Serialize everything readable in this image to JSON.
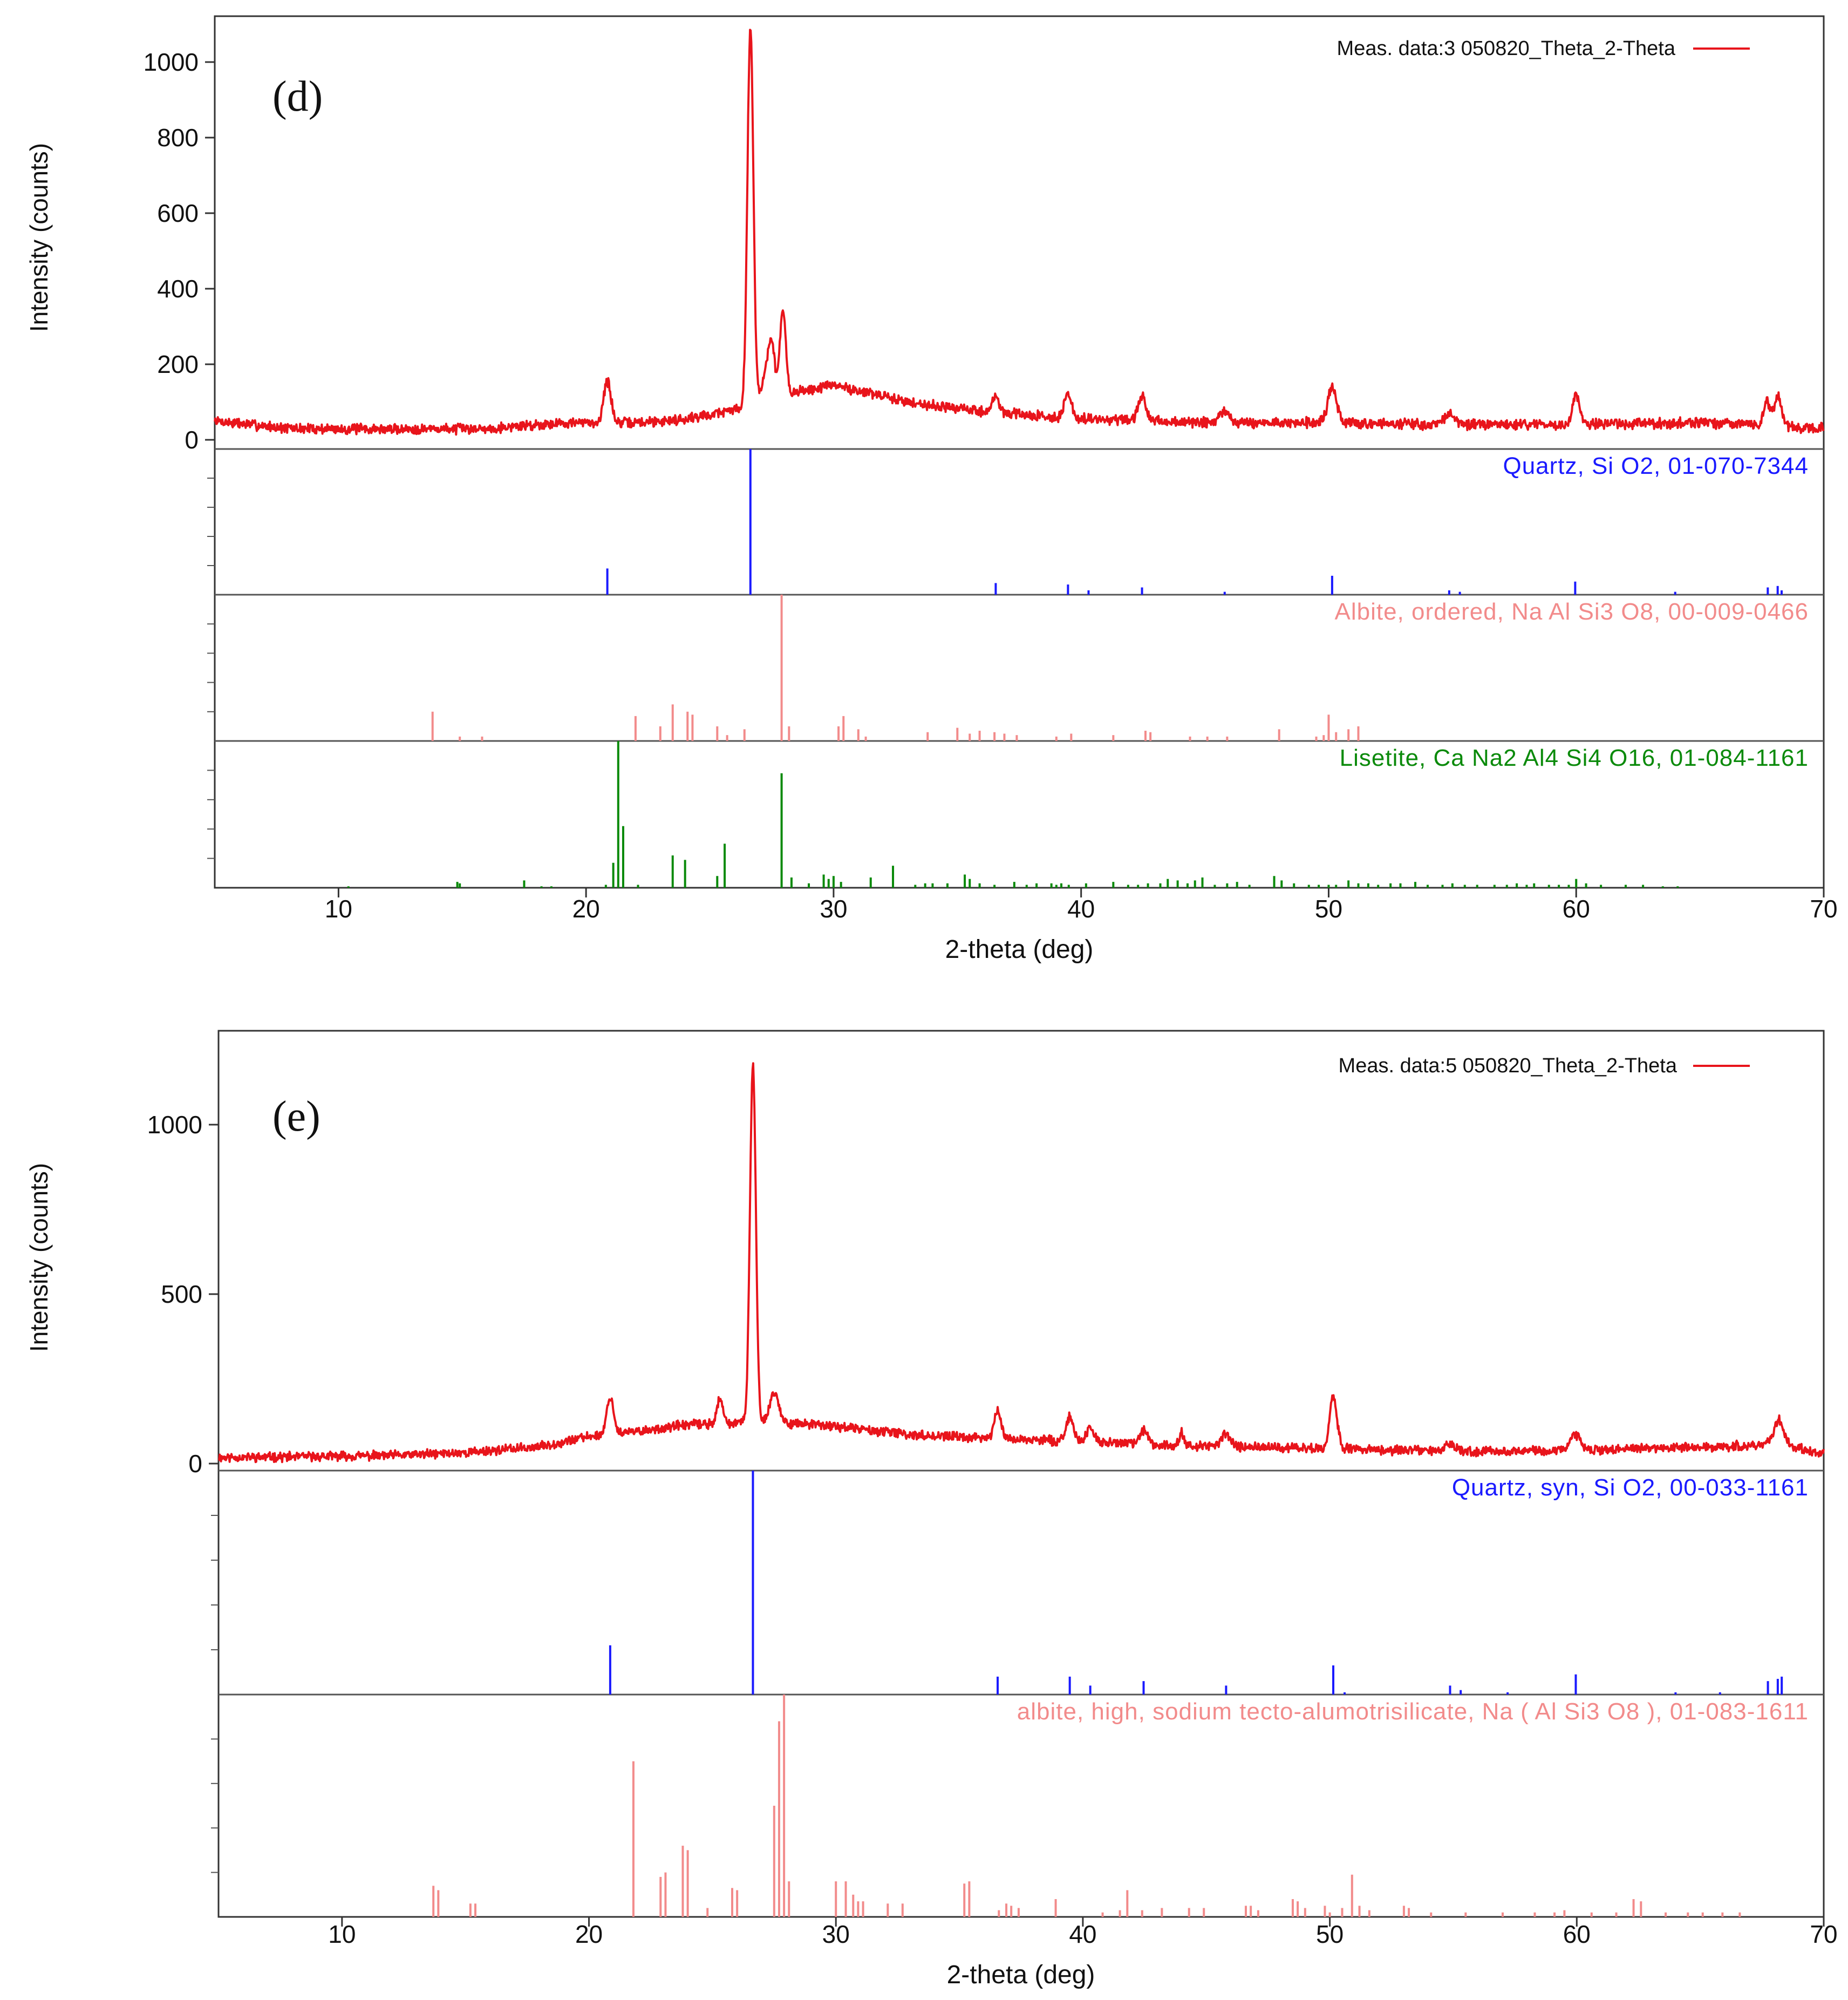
{
  "chart_data": [
    {
      "panel": "(d)",
      "type": "line",
      "xlabel": "2-theta (deg)",
      "ylabel": "Intensity (counts)",
      "xlim": [
        5,
        70
      ],
      "ylim": [
        0,
        1100
      ],
      "xticks": [
        10,
        20,
        30,
        40,
        50,
        60,
        70
      ],
      "yticks": [
        0,
        200,
        400,
        600,
        800,
        1000
      ],
      "legend": "Meas. data:3 050820_Theta_2-Theta",
      "line_color": "#e8141b",
      "baseline": [
        [
          5,
          50
        ],
        [
          8,
          30
        ],
        [
          12,
          28
        ],
        [
          16,
          30
        ],
        [
          19,
          45
        ],
        [
          22,
          45
        ],
        [
          24,
          55
        ],
        [
          26,
          80
        ],
        [
          28,
          120
        ],
        [
          30,
          145
        ],
        [
          33,
          100
        ],
        [
          36,
          75
        ],
        [
          40,
          55
        ],
        [
          45,
          45
        ],
        [
          50,
          45
        ],
        [
          55,
          40
        ],
        [
          60,
          40
        ],
        [
          65,
          45
        ],
        [
          70,
          30
        ]
      ],
      "peaks": [
        [
          20.86,
          110,
          0.15
        ],
        [
          26.64,
          1000,
          0.12
        ],
        [
          27.3,
          70,
          0.2
        ],
        [
          27.5,
          120,
          0.12
        ],
        [
          27.95,
          220,
          0.12
        ],
        [
          36.55,
          40,
          0.15
        ],
        [
          39.47,
          60,
          0.15
        ],
        [
          42.46,
          65,
          0.15
        ],
        [
          45.8,
          30,
          0.2
        ],
        [
          50.14,
          90,
          0.18
        ],
        [
          54.9,
          30,
          0.2
        ],
        [
          60.0,
          80,
          0.15
        ],
        [
          67.7,
          70,
          0.12
        ],
        [
          68.15,
          80,
          0.15
        ]
      ],
      "references": [
        {
          "label": "Quartz, Si O2, 01-070-7344",
          "color": "#1a1aff",
          "positions": [
            20.86,
            26.64,
            36.55,
            39.47,
            40.3,
            42.46,
            45.8,
            50.14,
            54.87,
            55.3,
            59.96,
            64.0,
            67.74,
            68.14,
            68.3
          ],
          "intensities": [
            18,
            100,
            8,
            7,
            3,
            5,
            2,
            13,
            3,
            2,
            9,
            2,
            5,
            6,
            3
          ]
        },
        {
          "label": "Albite, ordered, Na Al Si3 O8, 00-009-0466",
          "color": "#f28b8b",
          "positions": [
            13.8,
            14.9,
            15.8,
            22.0,
            23.0,
            23.5,
            24.1,
            24.3,
            25.3,
            25.7,
            26.4,
            27.9,
            28.2,
            30.2,
            30.4,
            31.0,
            31.3,
            33.8,
            35.0,
            35.5,
            35.9,
            36.5,
            36.9,
            37.4,
            39.0,
            39.6,
            41.3,
            42.6,
            42.8,
            44.4,
            45.1,
            45.9,
            48.0,
            49.5,
            49.8,
            50.0,
            50.3,
            50.8,
            51.2
          ],
          "intensities": [
            20,
            3,
            3,
            17,
            10,
            25,
            20,
            18,
            10,
            4,
            8,
            100,
            10,
            10,
            17,
            8,
            3,
            6,
            9,
            5,
            7,
            6,
            5,
            4,
            3,
            5,
            4,
            7,
            6,
            3,
            3,
            3,
            8,
            3,
            4,
            18,
            6,
            8,
            10
          ]
        },
        {
          "label": "Lisetite, Ca Na2 Al4 Si4 O16, 01-084-1161",
          "color": "#0a8a0a",
          "positions": [
            10.4,
            14.8,
            14.9,
            17.5,
            18.2,
            18.6,
            20.8,
            21.1,
            21.3,
            21.5,
            22.1,
            23.5,
            24.0,
            25.3,
            25.6,
            27.9,
            28.3,
            29.0,
            29.6,
            29.8,
            30.0,
            30.3,
            31.5,
            32.4,
            33.3,
            33.7,
            34.0,
            34.6,
            35.3,
            35.5,
            35.9,
            36.5,
            37.3,
            37.8,
            38.2,
            38.8,
            39.0,
            39.2,
            39.5,
            40.2,
            41.3,
            41.9,
            42.3,
            42.7,
            43.2,
            43.5,
            43.9,
            44.3,
            44.6,
            44.9,
            45.4,
            45.9,
            46.3,
            46.8,
            47.8,
            48.1,
            48.6,
            49.2,
            49.6,
            50.0,
            50.3,
            50.8,
            51.2,
            51.6,
            52.0,
            52.5,
            52.9,
            53.5,
            54.0,
            54.6,
            55.0,
            55.5,
            56.0,
            56.7,
            57.2,
            57.6,
            58.0,
            58.3,
            58.9,
            59.3,
            59.7,
            60.0,
            60.4,
            61.0,
            62.0,
            62.7,
            63.5,
            64.1
          ],
          "intensities": [
            1,
            4,
            3,
            5,
            1,
            1,
            2,
            17,
            100,
            42,
            2,
            22,
            19,
            8,
            30,
            78,
            7,
            3,
            9,
            6,
            8,
            4,
            7,
            15,
            2,
            3,
            3,
            3,
            9,
            6,
            3,
            2,
            4,
            2,
            3,
            3,
            2,
            3,
            2,
            3,
            4,
            2,
            2,
            3,
            3,
            6,
            5,
            3,
            5,
            7,
            2,
            3,
            4,
            2,
            8,
            5,
            3,
            2,
            2,
            2,
            2,
            5,
            3,
            3,
            2,
            3,
            3,
            4,
            2,
            2,
            3,
            2,
            2,
            2,
            2,
            3,
            2,
            3,
            2,
            2,
            2,
            6,
            3,
            2,
            2,
            2,
            1,
            1
          ]
        }
      ]
    },
    {
      "panel": "(e)",
      "type": "line",
      "xlabel": "2-theta (deg)",
      "ylabel": "Intensity (counts)",
      "xlim": [
        5,
        70
      ],
      "ylim": [
        0,
        1250
      ],
      "xticks": [
        10,
        20,
        30,
        40,
        50,
        60,
        70
      ],
      "yticks": [
        0,
        500,
        1000
      ],
      "legend": "Meas. data:5 050820_Theta_2-Theta",
      "line_color": "#e8141b",
      "baseline": [
        [
          5,
          18
        ],
        [
          8,
          20
        ],
        [
          12,
          24
        ],
        [
          15,
          32
        ],
        [
          18,
          50
        ],
        [
          20,
          80
        ],
        [
          22,
          95
        ],
        [
          24,
          115
        ],
        [
          26,
          120
        ],
        [
          28,
          120
        ],
        [
          30,
          110
        ],
        [
          33,
          85
        ],
        [
          36,
          75
        ],
        [
          40,
          65
        ],
        [
          45,
          50
        ],
        [
          50,
          45
        ],
        [
          55,
          35
        ],
        [
          60,
          40
        ],
        [
          63,
          45
        ],
        [
          66,
          50
        ],
        [
          68,
          60
        ],
        [
          70,
          30
        ]
      ],
      "peaks": [
        [
          20.86,
          110,
          0.14
        ],
        [
          25.3,
          70,
          0.12
        ],
        [
          26.64,
          1050,
          0.12
        ],
        [
          27.5,
          90,
          0.18
        ],
        [
          36.55,
          80,
          0.14
        ],
        [
          39.47,
          70,
          0.15
        ],
        [
          40.3,
          40,
          0.15
        ],
        [
          42.46,
          40,
          0.15
        ],
        [
          44.0,
          40,
          0.1
        ],
        [
          45.8,
          40,
          0.2
        ],
        [
          50.14,
          150,
          0.15
        ],
        [
          54.87,
          25,
          0.2
        ],
        [
          59.96,
          45,
          0.2
        ],
        [
          68.2,
          70,
          0.2
        ]
      ],
      "references": [
        {
          "label": "Quartz, syn, Si O2, 00-033-1161",
          "color": "#1a1aff",
          "positions": [
            20.86,
            26.64,
            36.55,
            39.47,
            40.3,
            42.46,
            45.8,
            50.14,
            50.6,
            54.87,
            55.3,
            57.2,
            59.96,
            64.0,
            65.8,
            67.74,
            68.14,
            68.3
          ],
          "intensities": [
            22,
            100,
            8,
            8,
            4,
            6,
            4,
            13,
            1,
            4,
            2,
            1,
            9,
            1,
            1,
            6,
            7,
            8
          ]
        },
        {
          "label": "albite, high, sodium tecto-alumotrisilicate, Na ( Al Si3 O8 ), 01-083-1611",
          "color": "#f28b8b",
          "positions": [
            13.7,
            13.9,
            15.2,
            15.4,
            21.8,
            22.9,
            23.1,
            23.8,
            24.0,
            24.8,
            25.8,
            26.0,
            27.5,
            27.7,
            27.9,
            28.1,
            30.0,
            30.4,
            30.7,
            30.9,
            31.1,
            32.1,
            32.7,
            35.2,
            35.4,
            36.6,
            36.9,
            37.1,
            37.4,
            38.9,
            40.8,
            41.5,
            41.8,
            42.4,
            43.2,
            44.3,
            44.9,
            46.6,
            46.8,
            47.1,
            48.5,
            48.7,
            49.0,
            49.8,
            50.0,
            50.5,
            50.9,
            51.2,
            51.6,
            53.0,
            53.2,
            54.1,
            55.5,
            57.0,
            58.3,
            59.1,
            59.5,
            60.6,
            61.6,
            62.3,
            62.6,
            63.6,
            64.5,
            65.1,
            65.9,
            66.6
          ],
          "intensities": [
            14,
            12,
            6,
            6,
            70,
            18,
            20,
            32,
            30,
            4,
            13,
            12,
            50,
            88,
            100,
            16,
            16,
            16,
            10,
            7,
            7,
            6,
            6,
            15,
            16,
            3,
            6,
            5,
            4,
            8,
            2,
            3,
            12,
            3,
            4,
            4,
            4,
            5,
            5,
            3,
            8,
            7,
            4,
            5,
            2,
            4,
            19,
            5,
            3,
            5,
            4,
            2,
            2,
            2,
            2,
            2,
            3,
            2,
            2,
            8,
            7,
            2,
            2,
            2,
            2,
            2
          ]
        }
      ]
    }
  ]
}
